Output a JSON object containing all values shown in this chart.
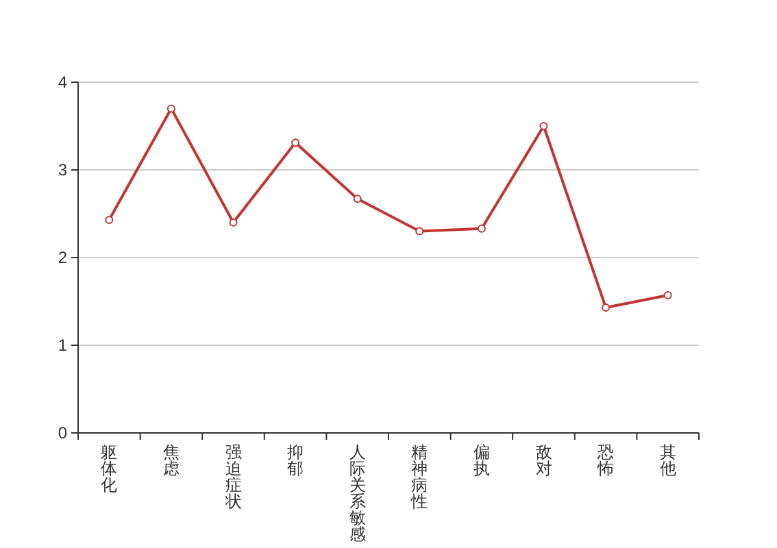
{
  "chart_data": {
    "type": "line",
    "categories": [
      "躯体化",
      "焦虑",
      "强迫症状",
      "抑郁",
      "人际关系敏感",
      "精神病性",
      "偏执",
      "敌对",
      "恐怖",
      "其他"
    ],
    "series": [
      {
        "color": "#c23531",
        "values": [
          2.43,
          3.7,
          2.4,
          3.31,
          2.67,
          2.3,
          2.33,
          3.5,
          1.43,
          1.57
        ]
      }
    ],
    "ylim": [
      0,
      4
    ],
    "yticks": [
      0,
      1,
      2,
      3,
      4
    ],
    "grid": "y",
    "marker": "circle"
  }
}
